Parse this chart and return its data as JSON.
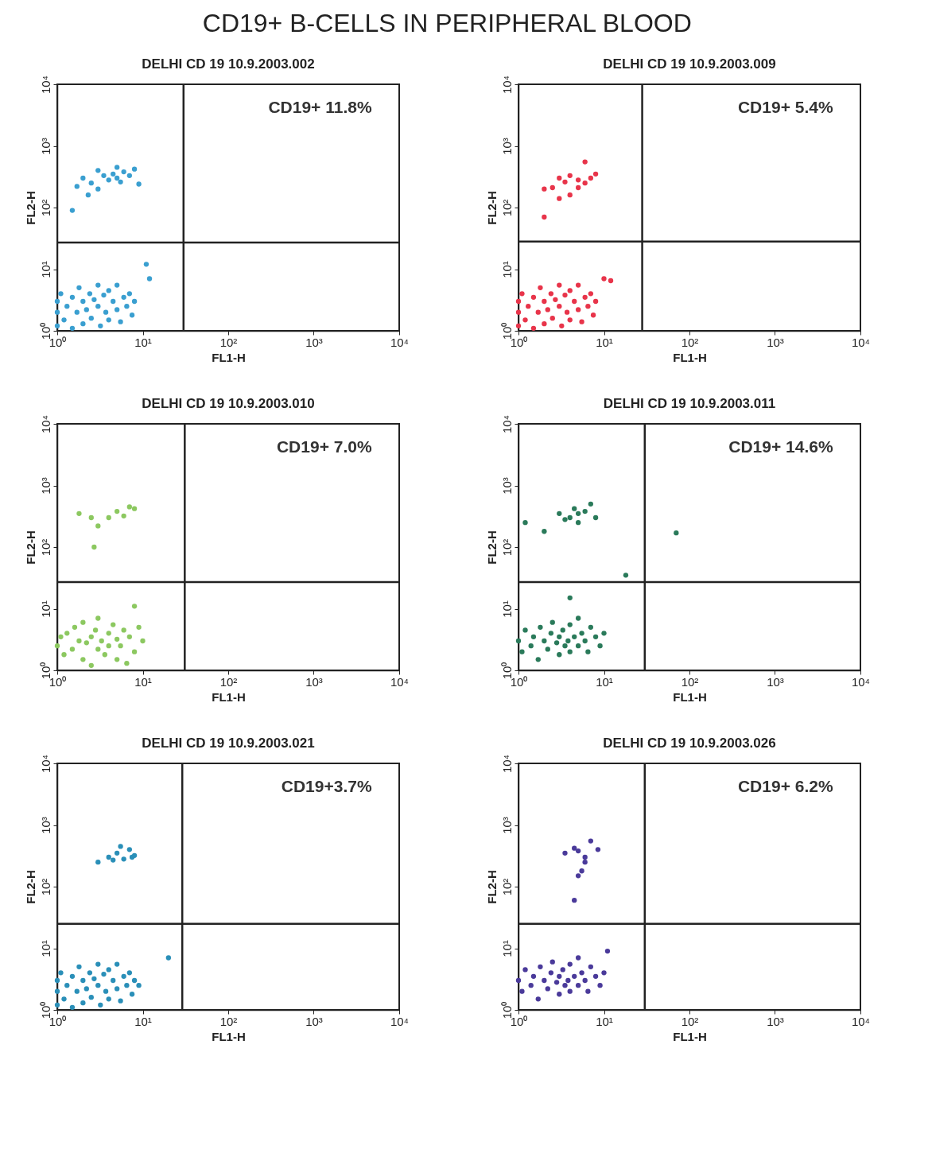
{
  "chart_data": [
    {
      "type": "other",
      "title": "CD19+ B-CELLS IN PERIPHERAL BLOOD"
    },
    {
      "type": "scatter",
      "title": "DELHI CD 19 10.9.2003.002",
      "xlabel": "FL1-H",
      "ylabel": "FL2-H",
      "log": "xy",
      "marker": "circle",
      "color": "#3a9fd0",
      "annotations": [
        "CD19+ 11.8%"
      ],
      "xlim": [
        1,
        10000
      ],
      "ylim": [
        1,
        10000
      ],
      "xticks": [
        {
          "value": 1,
          "label": "10⁰"
        },
        {
          "value": 10,
          "label": "10¹"
        },
        {
          "value": 100,
          "label": "10²"
        },
        {
          "value": 1000,
          "label": "10³"
        },
        {
          "value": 10000,
          "label": "10⁴"
        }
      ],
      "yticks": [
        {
          "value": 1,
          "label": "10⁰"
        },
        {
          "value": 10,
          "label": "10¹"
        },
        {
          "value": 100,
          "label": "10²"
        },
        {
          "value": 1000,
          "label": "10³"
        },
        {
          "value": 10000,
          "label": "10⁴"
        }
      ],
      "ref_lines": [
        {
          "axis": "x",
          "value": 30,
          "color": "#222222"
        },
        {
          "axis": "y",
          "value": 27,
          "color": "#222222"
        }
      ],
      "x": [
        1,
        1,
        1,
        1.1,
        1.2,
        1.3,
        1.5,
        1.5,
        1.7,
        1.8,
        2,
        2,
        2.2,
        2.4,
        2.5,
        2.7,
        3,
        3,
        3.2,
        3.5,
        3.7,
        4,
        4,
        4.5,
        5,
        5,
        5.5,
        6,
        6.5,
        7,
        7.5,
        8,
        12,
        11,
        1.5,
        1.7,
        2,
        2.3,
        2.5,
        3,
        3,
        3.5,
        4,
        4.5,
        5,
        5,
        5.5,
        6,
        7,
        8,
        9
      ],
      "values": [
        1.2,
        2,
        3,
        4,
        1.5,
        2.5,
        3.5,
        1.1,
        2,
        5,
        1.3,
        3,
        2.2,
        4,
        1.6,
        3.2,
        2.5,
        5.5,
        1.2,
        3.8,
        2,
        4.5,
        1.5,
        3,
        2.2,
        5.5,
        1.4,
        3.5,
        2.5,
        4,
        1.8,
        3,
        7,
        12,
        90,
        220,
        300,
        160,
        250,
        400,
        200,
        330,
        280,
        350,
        300,
        450,
        260,
        380,
        330,
        420,
        240
      ]
    },
    {
      "type": "scatter",
      "title": "DELHI CD 19 10.9.2003.009",
      "xlabel": "FL1-H",
      "ylabel": "FL2-H",
      "log": "xy",
      "marker": "circle",
      "color": "#e8344a",
      "annotations": [
        "CD19+ 5.4%"
      ],
      "xlim": [
        1,
        10000
      ],
      "ylim": [
        1,
        10000
      ],
      "xticks": [
        {
          "value": 1,
          "label": "10⁰"
        },
        {
          "value": 10,
          "label": "10¹"
        },
        {
          "value": 100,
          "label": "10²"
        },
        {
          "value": 1000,
          "label": "10³"
        },
        {
          "value": 10000,
          "label": "10⁴"
        }
      ],
      "yticks": [
        {
          "value": 1,
          "label": "10⁰"
        },
        {
          "value": 10,
          "label": "10¹"
        },
        {
          "value": 100,
          "label": "10²"
        },
        {
          "value": 1000,
          "label": "10³"
        },
        {
          "value": 10000,
          "label": "10⁴"
        }
      ],
      "ref_lines": [
        {
          "axis": "x",
          "value": 28,
          "color": "#222222"
        },
        {
          "axis": "y",
          "value": 28,
          "color": "#222222"
        }
      ],
      "x": [
        1,
        1,
        1,
        1.1,
        1.2,
        1.3,
        1.5,
        1.5,
        1.7,
        1.8,
        2,
        2,
        2.2,
        2.4,
        2.5,
        2.7,
        3,
        3,
        3.2,
        3.5,
        3.7,
        4,
        4,
        4.5,
        5,
        5,
        5.5,
        6,
        6.5,
        7,
        7.5,
        8,
        10,
        12,
        2,
        2.5,
        3,
        3.5,
        4,
        5,
        6,
        7,
        8,
        6,
        4,
        3,
        2,
        5
      ],
      "values": [
        1.2,
        2,
        3,
        4,
        1.5,
        2.5,
        3.5,
        1.1,
        2,
        5,
        1.3,
        3,
        2.2,
        4,
        1.6,
        3.2,
        2.5,
        5.5,
        1.2,
        3.8,
        2,
        4.5,
        1.5,
        3,
        2.2,
        5.5,
        1.4,
        3.5,
        2.5,
        4,
        1.8,
        3,
        7,
        6.5,
        200,
        210,
        300,
        260,
        330,
        280,
        250,
        300,
        350,
        550,
        160,
        140,
        70,
        210
      ]
    },
    {
      "type": "scatter",
      "title": "DELHI CD 19 10.9.2003.010",
      "xlabel": "FL1-H",
      "ylabel": "FL2-H",
      "log": "xy",
      "marker": "circle",
      "color": "#8cc860",
      "annotations": [
        "CD19+ 7.0%"
      ],
      "xlim": [
        1,
        10000
      ],
      "ylim": [
        1,
        10000
      ],
      "xticks": [
        {
          "value": 1,
          "label": "10⁰"
        },
        {
          "value": 10,
          "label": "10¹"
        },
        {
          "value": 100,
          "label": "10²"
        },
        {
          "value": 1000,
          "label": "10³"
        },
        {
          "value": 10000,
          "label": "10⁴"
        }
      ],
      "yticks": [
        {
          "value": 1,
          "label": "10⁰"
        },
        {
          "value": 10,
          "label": "10¹"
        },
        {
          "value": 100,
          "label": "10²"
        },
        {
          "value": 1000,
          "label": "10³"
        },
        {
          "value": 10000,
          "label": "10⁴"
        }
      ],
      "ref_lines": [
        {
          "axis": "x",
          "value": 31,
          "color": "#222222"
        },
        {
          "axis": "y",
          "value": 27,
          "color": "#222222"
        }
      ],
      "x": [
        1,
        1.1,
        1.2,
        1.3,
        1.5,
        1.6,
        1.8,
        2,
        2,
        2.2,
        2.5,
        2.5,
        2.8,
        3,
        3,
        3.3,
        3.6,
        4,
        4,
        4.5,
        5,
        5,
        5.5,
        6,
        6.5,
        7,
        8,
        9,
        10,
        8,
        1.8,
        2.5,
        3,
        4,
        5,
        6,
        7,
        8,
        2.7
      ],
      "values": [
        2.5,
        3.5,
        1.8,
        4,
        2.2,
        5,
        3,
        1.5,
        6,
        2.8,
        3.5,
        1.2,
        4.5,
        2.2,
        7,
        3,
        1.8,
        4,
        2.5,
        5.5,
        1.5,
        3.2,
        2.5,
        4.5,
        1.3,
        3.5,
        2,
        5,
        3,
        11,
        350,
        300,
        220,
        300,
        380,
        320,
        450,
        420,
        100
      ]
    },
    {
      "type": "scatter",
      "title": "DELHI CD 19 10.9.2003.011",
      "xlabel": "FL1-H",
      "ylabel": "FL2-H",
      "log": "xy",
      "marker": "circle",
      "color": "#2a7a5a",
      "annotations": [
        "CD19+ 14.6%"
      ],
      "xlim": [
        1,
        10000
      ],
      "ylim": [
        1,
        10000
      ],
      "xticks": [
        {
          "value": 1,
          "label": "10⁰"
        },
        {
          "value": 10,
          "label": "10¹"
        },
        {
          "value": 100,
          "label": "10²"
        },
        {
          "value": 1000,
          "label": "10³"
        },
        {
          "value": 10000,
          "label": "10⁴"
        }
      ],
      "yticks": [
        {
          "value": 1,
          "label": "10⁰"
        },
        {
          "value": 10,
          "label": "10¹"
        },
        {
          "value": 100,
          "label": "10²"
        },
        {
          "value": 1000,
          "label": "10³"
        },
        {
          "value": 10000,
          "label": "10⁴"
        }
      ],
      "ref_lines": [
        {
          "axis": "x",
          "value": 30,
          "color": "#222222"
        },
        {
          "axis": "y",
          "value": 27,
          "color": "#222222"
        }
      ],
      "x": [
        1,
        1.1,
        1.2,
        1.4,
        1.5,
        1.7,
        1.8,
        2,
        2.2,
        2.4,
        2.5,
        2.8,
        3,
        3,
        3.3,
        3.5,
        3.8,
        4,
        4,
        4.5,
        5,
        5,
        5.5,
        6,
        6.5,
        7,
        8,
        9,
        10,
        4,
        1.2,
        2,
        3,
        4,
        4.5,
        5,
        6,
        7,
        8,
        5,
        3.5,
        70,
        18
      ],
      "values": [
        3,
        2,
        4.5,
        2.5,
        3.5,
        1.5,
        5,
        3,
        2.2,
        4,
        6,
        2.8,
        3.5,
        1.8,
        4.5,
        2.5,
        3,
        5.5,
        2,
        3.5,
        2.5,
        7,
        4,
        3,
        2,
        5,
        3.5,
        2.5,
        4,
        15,
        250,
        180,
        350,
        300,
        420,
        350,
        380,
        500,
        300,
        250,
        280,
        170,
        35
      ]
    },
    {
      "type": "scatter",
      "title": "DELHI CD 19 10.9.2003.021",
      "xlabel": "FL1-H",
      "ylabel": "FL2-H",
      "log": "xy",
      "marker": "circle",
      "color": "#2a8fb8",
      "annotations": [
        "CD19+3.7%"
      ],
      "xlim": [
        1,
        10000
      ],
      "ylim": [
        1,
        10000
      ],
      "xticks": [
        {
          "value": 1,
          "label": "10⁰"
        },
        {
          "value": 10,
          "label": "10¹"
        },
        {
          "value": 100,
          "label": "10²"
        },
        {
          "value": 1000,
          "label": "10³"
        },
        {
          "value": 10000,
          "label": "10⁴"
        }
      ],
      "yticks": [
        {
          "value": 1,
          "label": "10⁰"
        },
        {
          "value": 10,
          "label": "10¹"
        },
        {
          "value": 100,
          "label": "10²"
        },
        {
          "value": 1000,
          "label": "10³"
        },
        {
          "value": 10000,
          "label": "10⁴"
        }
      ],
      "ref_lines": [
        {
          "axis": "x",
          "value": 29,
          "color": "#222222"
        },
        {
          "axis": "y",
          "value": 25,
          "color": "#222222"
        }
      ],
      "x": [
        1,
        1,
        1,
        1.1,
        1.2,
        1.3,
        1.5,
        1.5,
        1.7,
        1.8,
        2,
        2,
        2.2,
        2.4,
        2.5,
        2.7,
        3,
        3,
        3.2,
        3.5,
        3.7,
        4,
        4,
        4.5,
        5,
        5,
        5.5,
        6,
        6.5,
        7,
        7.5,
        8,
        9,
        20,
        3,
        4,
        5,
        6,
        7,
        7.5,
        8,
        5.5,
        4.5
      ],
      "values": [
        1.2,
        2,
        3,
        4,
        1.5,
        2.5,
        3.5,
        1.1,
        2,
        5,
        1.3,
        3,
        2.2,
        4,
        1.6,
        3.2,
        2.5,
        5.5,
        1.2,
        3.8,
        2,
        4.5,
        1.5,
        3,
        2.2,
        5.5,
        1.4,
        3.5,
        2.5,
        4,
        1.8,
        3,
        2.5,
        7,
        250,
        300,
        350,
        280,
        400,
        300,
        320,
        450,
        270
      ]
    },
    {
      "type": "scatter",
      "title": "DELHI CD 19 10.9.2003.026",
      "xlabel": "FL1-H",
      "ylabel": "FL2-H",
      "log": "xy",
      "marker": "circle",
      "color": "#4a3a9a",
      "annotations": [
        "CD19+ 6.2%"
      ],
      "xlim": [
        1,
        10000
      ],
      "ylim": [
        1,
        10000
      ],
      "xticks": [
        {
          "value": 1,
          "label": "10⁰"
        },
        {
          "value": 10,
          "label": "10¹"
        },
        {
          "value": 100,
          "label": "10²"
        },
        {
          "value": 1000,
          "label": "10³"
        },
        {
          "value": 10000,
          "label": "10⁴"
        }
      ],
      "yticks": [
        {
          "value": 1,
          "label": "10⁰"
        },
        {
          "value": 10,
          "label": "10¹"
        },
        {
          "value": 100,
          "label": "10²"
        },
        {
          "value": 1000,
          "label": "10³"
        },
        {
          "value": 10000,
          "label": "10⁴"
        }
      ],
      "ref_lines": [
        {
          "axis": "x",
          "value": 30,
          "color": "#222222"
        },
        {
          "axis": "y",
          "value": 25,
          "color": "#222222"
        }
      ],
      "x": [
        1,
        1.1,
        1.2,
        1.4,
        1.5,
        1.7,
        1.8,
        2,
        2.2,
        2.4,
        2.5,
        2.8,
        3,
        3,
        3.3,
        3.5,
        3.8,
        4,
        4,
        4.5,
        5,
        5,
        5.5,
        6,
        6.5,
        7,
        8,
        9,
        10,
        11,
        3.5,
        4.5,
        5,
        6,
        5.5,
        5,
        4.5,
        7,
        8.5,
        6
      ],
      "values": [
        3,
        2,
        4.5,
        2.5,
        3.5,
        1.5,
        5,
        3,
        2.2,
        4,
        6,
        2.8,
        3.5,
        1.8,
        4.5,
        2.5,
        3,
        5.5,
        2,
        3.5,
        2.5,
        7,
        4,
        3,
        2,
        5,
        3.5,
        2.5,
        4,
        9,
        350,
        420,
        380,
        300,
        180,
        150,
        60,
        550,
        400,
        250
      ]
    }
  ]
}
